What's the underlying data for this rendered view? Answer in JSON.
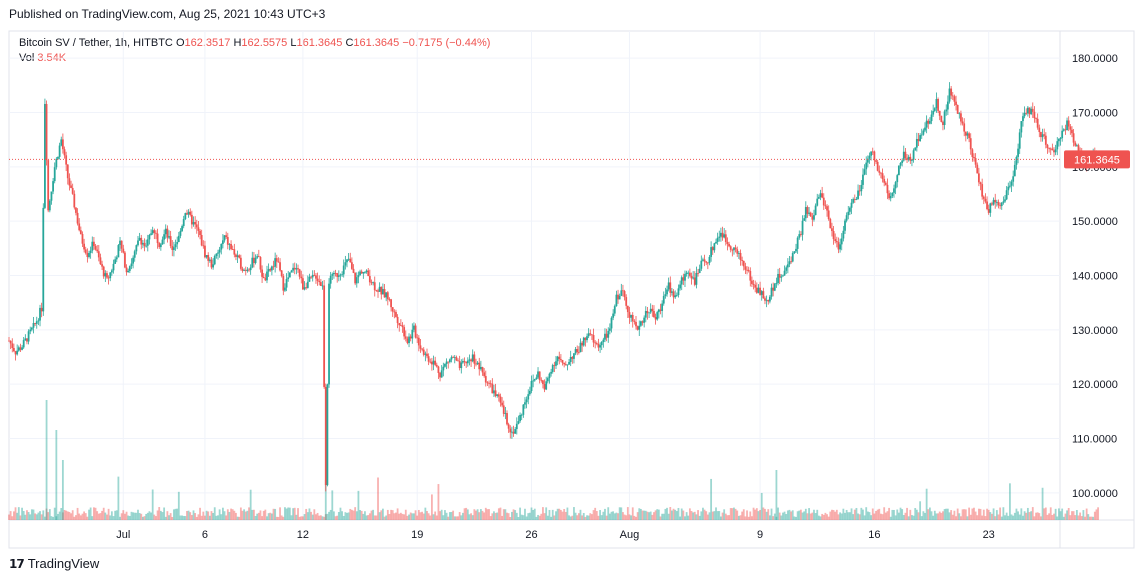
{
  "header": {
    "published": "Published on TradingView.com, Aug 25, 2021 10:43 UTC+3"
  },
  "legend": {
    "symbol": "Bitcoin SV / Tether, 1h, HITBTC",
    "o_label": "O",
    "o_value": "162.3517",
    "h_label": "H",
    "h_value": "162.5575",
    "l_label": "L",
    "l_value": "161.3645",
    "c_label": "C",
    "c_value": "161.3645",
    "change": "−0.7175 (−0.44%)",
    "vol_label": "Vol",
    "vol_value": "3.54K"
  },
  "price_tag": {
    "text": "161.3645",
    "value": 161.3645,
    "color": "#ef5350"
  },
  "colors": {
    "up": "#26a69a",
    "down": "#ef5350",
    "grid": "#f0f3fa",
    "axis": "#b2b5be"
  },
  "footer": {
    "brand": "TradingView"
  },
  "chart_data": {
    "type": "candlestick",
    "title": "Bitcoin SV / Tether, 1h, HITBTC",
    "ylim": [
      95,
      185
    ],
    "y_ticks": [
      "100.0000",
      "110.0000",
      "120.0000",
      "130.0000",
      "140.0000",
      "150.0000",
      "160.0000",
      "170.0000",
      "180.0000"
    ],
    "y_tick_values": [
      100,
      110,
      120,
      130,
      140,
      150,
      160,
      170,
      180
    ],
    "x_ticks": [
      "Jul",
      "6",
      "12",
      "19",
      "26",
      "Aug",
      "9",
      "16",
      "23"
    ],
    "x_tick_days": [
      7,
      12,
      18,
      25,
      32,
      38,
      46,
      53,
      60
    ],
    "x_range_days": [
      0,
      64
    ],
    "grid": true,
    "series_points": [
      [
        0.0,
        128
      ],
      [
        0.4,
        126
      ],
      [
        0.8,
        127
      ],
      [
        1.2,
        129
      ],
      [
        1.6,
        131
      ],
      [
        2.0,
        134
      ],
      [
        2.2,
        172
      ],
      [
        2.4,
        152
      ],
      [
        2.8,
        160
      ],
      [
        3.2,
        165
      ],
      [
        3.6,
        158
      ],
      [
        4.0,
        153
      ],
      [
        4.4,
        147
      ],
      [
        4.8,
        144
      ],
      [
        5.2,
        146
      ],
      [
        5.6,
        142
      ],
      [
        6.0,
        139
      ],
      [
        6.4,
        142
      ],
      [
        6.8,
        146
      ],
      [
        7.2,
        141
      ],
      [
        7.6,
        143
      ],
      [
        8.0,
        147
      ],
      [
        8.4,
        145
      ],
      [
        8.8,
        149
      ],
      [
        9.2,
        146
      ],
      [
        9.6,
        148
      ],
      [
        10.0,
        145
      ],
      [
        10.4,
        147
      ],
      [
        10.8,
        152
      ],
      [
        11.2,
        150
      ],
      [
        11.6,
        148
      ],
      [
        12.0,
        144
      ],
      [
        12.4,
        142
      ],
      [
        12.8,
        144
      ],
      [
        13.2,
        147
      ],
      [
        13.6,
        145
      ],
      [
        14.0,
        143
      ],
      [
        14.4,
        141
      ],
      [
        14.8,
        142
      ],
      [
        15.2,
        144
      ],
      [
        15.6,
        139
      ],
      [
        16.0,
        141
      ],
      [
        16.4,
        143
      ],
      [
        16.8,
        138
      ],
      [
        17.2,
        140
      ],
      [
        17.6,
        142
      ],
      [
        18.0,
        138
      ],
      [
        18.4,
        139
      ],
      [
        18.8,
        140
      ],
      [
        19.2,
        138
      ],
      [
        19.4,
        102
      ],
      [
        19.6,
        139
      ],
      [
        20.0,
        140
      ],
      [
        20.4,
        141
      ],
      [
        20.8,
        143
      ],
      [
        21.2,
        139
      ],
      [
        21.6,
        141
      ],
      [
        22.0,
        140
      ],
      [
        22.4,
        138
      ],
      [
        22.8,
        137
      ],
      [
        23.2,
        136
      ],
      [
        23.6,
        133
      ],
      [
        24.0,
        131
      ],
      [
        24.4,
        128
      ],
      [
        24.8,
        130
      ],
      [
        25.2,
        127
      ],
      [
        25.6,
        125
      ],
      [
        26.0,
        124
      ],
      [
        26.4,
        122
      ],
      [
        26.8,
        124
      ],
      [
        27.2,
        125
      ],
      [
        27.6,
        123
      ],
      [
        28.0,
        124
      ],
      [
        28.4,
        125
      ],
      [
        28.8,
        123
      ],
      [
        29.2,
        121
      ],
      [
        29.6,
        119
      ],
      [
        30.0,
        117
      ],
      [
        30.4,
        114
      ],
      [
        30.8,
        111
      ],
      [
        31.2,
        113
      ],
      [
        31.6,
        117
      ],
      [
        32.0,
        120
      ],
      [
        32.4,
        122
      ],
      [
        32.8,
        119
      ],
      [
        33.2,
        123
      ],
      [
        33.6,
        125
      ],
      [
        34.0,
        123
      ],
      [
        34.4,
        125
      ],
      [
        34.8,
        126
      ],
      [
        35.2,
        128
      ],
      [
        35.6,
        129
      ],
      [
        36.0,
        127
      ],
      [
        36.4,
        128
      ],
      [
        36.8,
        130
      ],
      [
        37.2,
        136
      ],
      [
        37.6,
        137
      ],
      [
        38.0,
        133
      ],
      [
        38.4,
        130
      ],
      [
        38.8,
        132
      ],
      [
        39.2,
        134
      ],
      [
        39.6,
        132
      ],
      [
        40.0,
        135
      ],
      [
        40.4,
        138
      ],
      [
        40.8,
        136
      ],
      [
        41.2,
        139
      ],
      [
        41.6,
        141
      ],
      [
        42.0,
        139
      ],
      [
        42.4,
        142
      ],
      [
        42.8,
        143
      ],
      [
        43.2,
        146
      ],
      [
        43.6,
        148
      ],
      [
        44.0,
        146
      ],
      [
        44.4,
        145
      ],
      [
        44.8,
        143
      ],
      [
        45.2,
        141
      ],
      [
        45.6,
        138
      ],
      [
        46.0,
        137
      ],
      [
        46.4,
        135
      ],
      [
        46.8,
        138
      ],
      [
        47.2,
        140
      ],
      [
        47.6,
        141
      ],
      [
        48.0,
        144
      ],
      [
        48.4,
        147
      ],
      [
        48.8,
        152
      ],
      [
        49.2,
        150
      ],
      [
        49.6,
        155
      ],
      [
        50.0,
        153
      ],
      [
        50.4,
        148
      ],
      [
        50.8,
        145
      ],
      [
        51.2,
        150
      ],
      [
        51.6,
        153
      ],
      [
        52.0,
        155
      ],
      [
        52.4,
        159
      ],
      [
        52.8,
        163
      ],
      [
        53.2,
        160
      ],
      [
        53.6,
        157
      ],
      [
        54.0,
        154
      ],
      [
        54.4,
        159
      ],
      [
        54.8,
        162
      ],
      [
        55.2,
        161
      ],
      [
        55.6,
        165
      ],
      [
        56.0,
        167
      ],
      [
        56.4,
        169
      ],
      [
        56.8,
        172
      ],
      [
        57.2,
        168
      ],
      [
        57.6,
        174
      ],
      [
        58.0,
        171
      ],
      [
        58.4,
        168
      ],
      [
        58.8,
        165
      ],
      [
        59.2,
        160
      ],
      [
        59.6,
        155
      ],
      [
        60.0,
        152
      ],
      [
        60.4,
        154
      ],
      [
        60.8,
        153
      ],
      [
        61.2,
        156
      ],
      [
        61.6,
        160
      ],
      [
        62.0,
        168
      ],
      [
        62.4,
        171
      ],
      [
        62.8,
        169
      ],
      [
        63.2,
        166
      ],
      [
        63.6,
        164
      ],
      [
        64.0,
        162
      ],
      [
        64.4,
        166
      ],
      [
        64.8,
        168
      ],
      [
        65.2,
        165
      ],
      [
        65.6,
        163
      ],
      [
        66.0,
        160
      ],
      [
        66.4,
        162
      ],
      [
        66.8,
        161.36
      ]
    ]
  }
}
